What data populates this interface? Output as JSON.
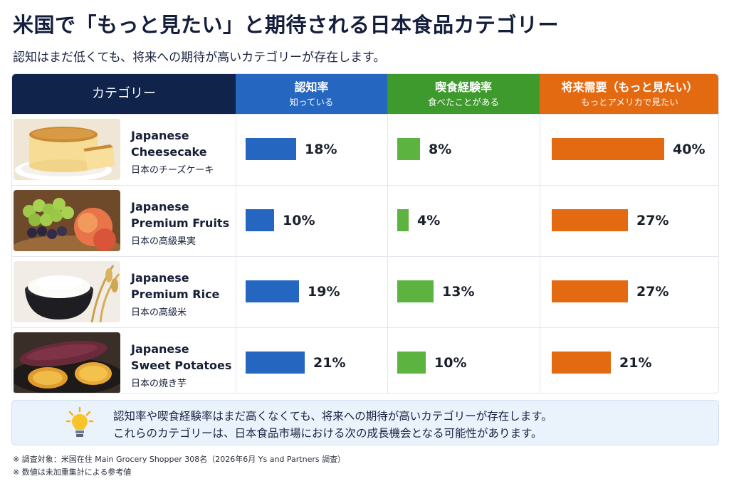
{
  "title": "米国で「もっと見たい」と期待される日本食品カテゴリー",
  "subtitle": "認知はまだ低くても、将来への期待が高いカテゴリーが存在します。",
  "headers": {
    "category": "カテゴリー",
    "awareness": {
      "label": "認知率",
      "sub": "知っている"
    },
    "experience": {
      "label": "喫食経験率",
      "sub": "食べたことがある"
    },
    "future": {
      "label": "将来需要（もっと見たい）",
      "sub": "もっとアメリカで見たい"
    }
  },
  "colors": {
    "navy": "#10234a",
    "awareness": "#2466c0",
    "experience": "#5db33f",
    "future": "#e46a12"
  },
  "chart_data": {
    "type": "bar",
    "categories": [
      "Japanese Cheesecake",
      "Japanese Premium Fruits",
      "Japanese Premium Rice",
      "Japanese Sweet Potatoes"
    ],
    "series": [
      {
        "name": "認知率",
        "values": [
          18,
          10,
          19,
          21
        ]
      },
      {
        "name": "喫食経験率",
        "values": [
          8,
          4,
          13,
          10
        ]
      },
      {
        "name": "将来需要（もっと見たい）",
        "values": [
          40,
          27,
          27,
          21
        ]
      }
    ],
    "unit": "%"
  },
  "rows": [
    {
      "en1": "Japanese",
      "en2": "Cheesecake",
      "jp": "日本のチーズケーキ",
      "awareness": "18%",
      "experience": "8%",
      "future": "40%",
      "image": "cheesecake"
    },
    {
      "en1": "Japanese",
      "en2": "Premium Fruits",
      "jp": "日本の高級果実",
      "awareness": "10%",
      "experience": "4%",
      "future": "27%",
      "image": "fruits"
    },
    {
      "en1": "Japanese",
      "en2": "Premium Rice",
      "jp": "日本の高級米",
      "awareness": "19%",
      "experience": "13%",
      "future": "27%",
      "image": "rice"
    },
    {
      "en1": "Japanese",
      "en2": "Sweet Potatoes",
      "jp": "日本の焼き芋",
      "awareness": "21%",
      "experience": "10%",
      "future": "21%",
      "image": "sweet-potato"
    }
  ],
  "note": {
    "line1": "認知率や喫食経験率はまだ高くなくても、将来への期待が高いカテゴリーが存在します。",
    "line2": "これらのカテゴリーは、日本食品市場における次の成長機会となる可能性があります。",
    "icon": "lightbulb-icon"
  },
  "footnotes": [
    "※ 調査対象：米国在住 Main Grocery Shopper 308名（2026年6月 Ys and Partners 調査）",
    "※ 数値は未加重集計による参考値"
  ]
}
